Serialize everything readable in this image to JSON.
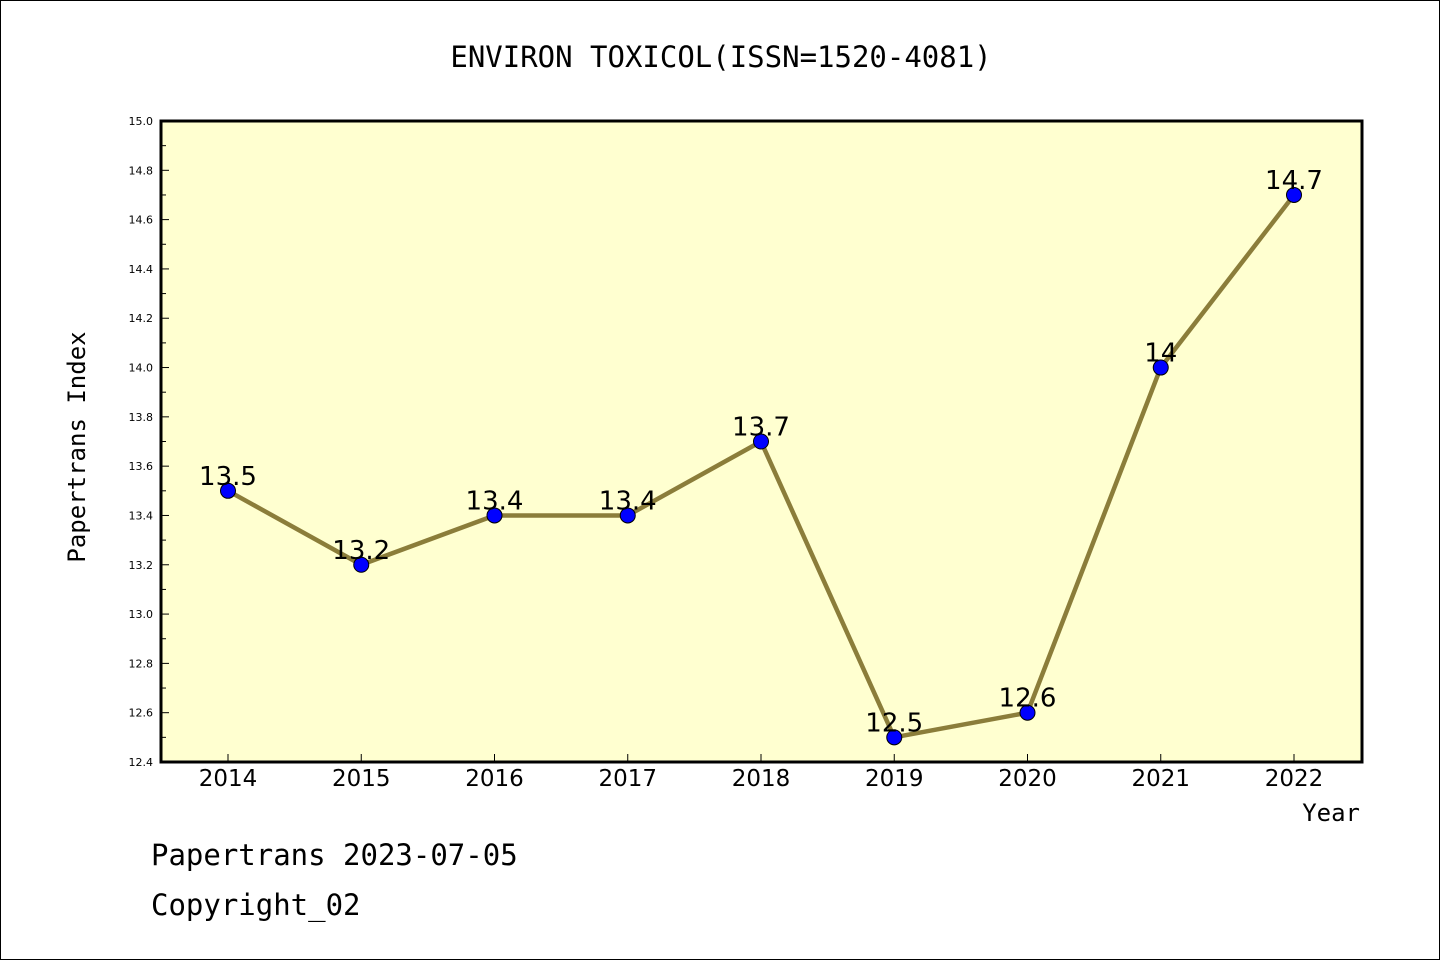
{
  "chart_data": {
    "type": "line",
    "title": "ENVIRON TOXICOL(ISSN=1520-4081)",
    "xlabel": "Year",
    "ylabel": "Papertrans Index",
    "categories": [
      "2014",
      "2015",
      "2016",
      "2017",
      "2018",
      "2019",
      "2020",
      "2021",
      "2022"
    ],
    "values": [
      13.5,
      13.2,
      13.4,
      13.4,
      13.7,
      12.5,
      12.6,
      14.0,
      14.7
    ],
    "data_labels": [
      "13.5",
      "13.2",
      "13.4",
      "13.4",
      "13.7",
      "12.5",
      "12.6",
      "14",
      "14.7"
    ],
    "ylim": [
      12.4,
      15.0
    ],
    "yticks": [
      "12.4",
      "12.6",
      "12.8",
      "13.0",
      "13.2",
      "13.4",
      "13.6",
      "13.8",
      "14.0",
      "14.2",
      "14.4",
      "14.6",
      "14.8",
      "15.0"
    ],
    "grid": false,
    "colors": {
      "plot_background": "#ffffd0",
      "line": "#8b7d3a",
      "marker": "#0000ff"
    }
  },
  "footer": {
    "line1": "Papertrans 2023-07-05",
    "line2": "Copyright_02"
  }
}
